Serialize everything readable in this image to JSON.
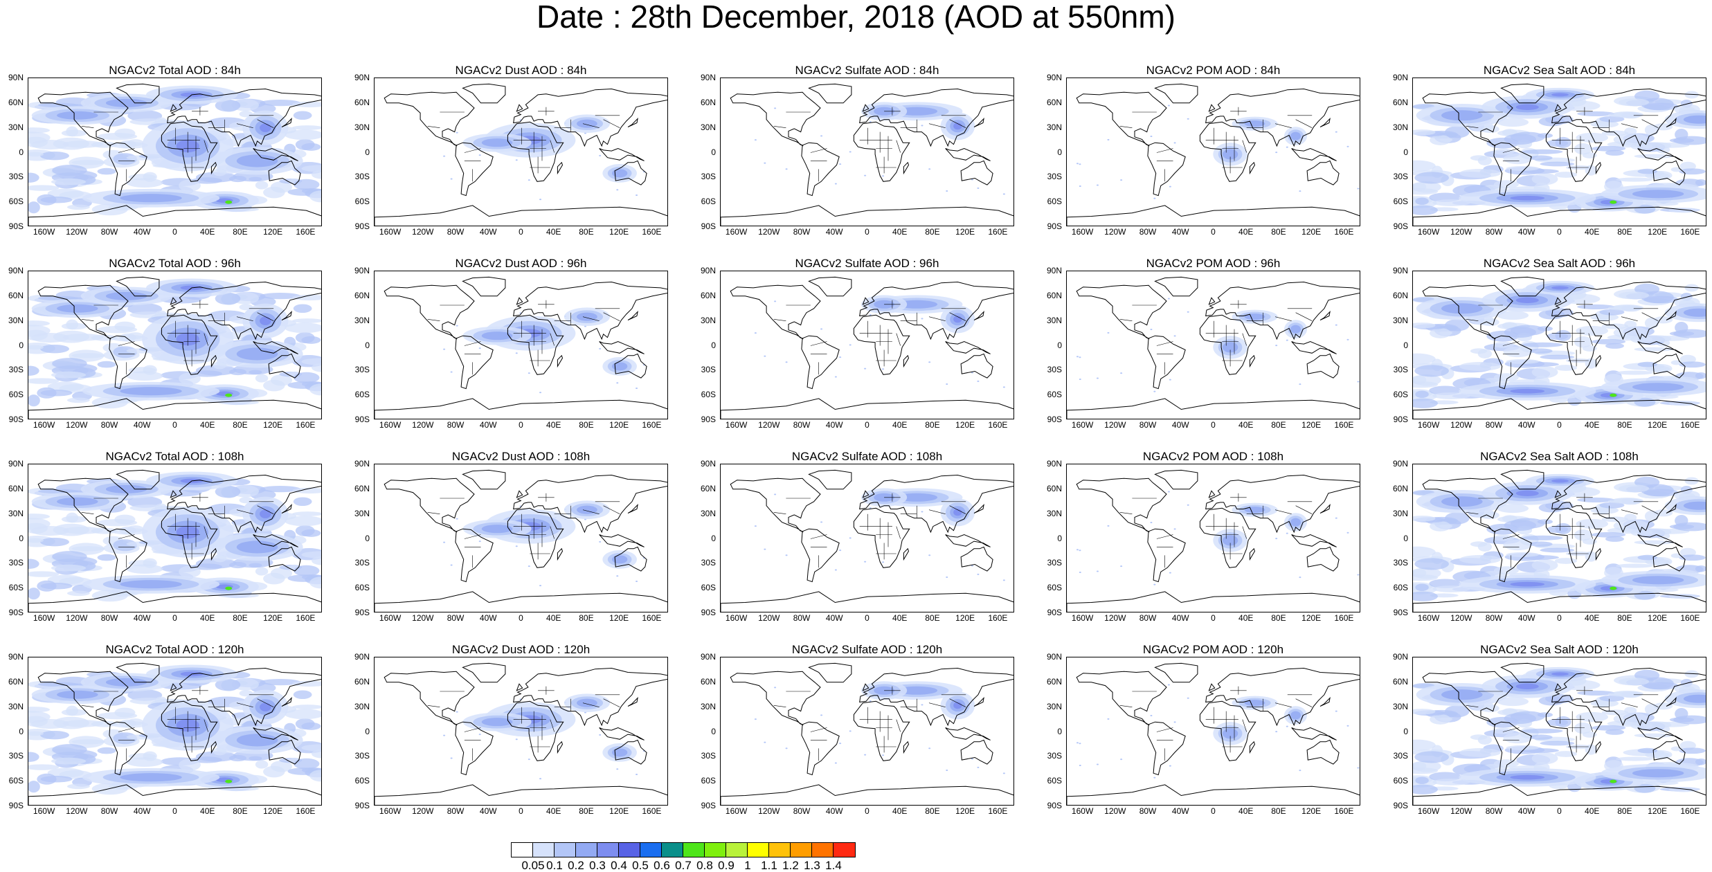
{
  "title": "Date : 28th December, 2018 (AOD at 550nm)",
  "lat_labels": [
    "90N",
    "60N",
    "30N",
    "0",
    "30S",
    "60S",
    "90S"
  ],
  "lon_labels": [
    "160W",
    "120W",
    "80W",
    "40W",
    "0",
    "40E",
    "80E",
    "120E",
    "160E"
  ],
  "species": [
    {
      "key": "total",
      "label": "Total AOD",
      "intensity": 0.9,
      "background": "ocean"
    },
    {
      "key": "dust",
      "label": "Dust AOD",
      "intensity": 0.7,
      "background": "none"
    },
    {
      "key": "sulfate",
      "label": "Sulfate AOD",
      "intensity": 0.5,
      "background": "none"
    },
    {
      "key": "pom",
      "label": "POM AOD",
      "intensity": 0.45,
      "background": "none"
    },
    {
      "key": "seasalt",
      "label": "Sea Salt AOD",
      "intensity": 0.8,
      "background": "ocean"
    }
  ],
  "panels": [
    {
      "row": "84h",
      "titles": [
        "NGACv2 Total AOD : 84h",
        "NGACv2 Dust AOD : 84h",
        "NGACv2 Sulfate AOD : 84h",
        "NGACv2 POM AOD : 84h",
        "NGACv2 Sea Salt AOD : 84h"
      ]
    },
    {
      "row": "96h",
      "titles": [
        "NGACv2 Total AOD : 96h",
        "NGACv2 Dust AOD : 96h",
        "NGACv2 Sulfate AOD : 96h",
        "NGACv2 POM AOD : 96h",
        "NGACv2 Sea Salt AOD : 96h"
      ]
    },
    {
      "row": "108h",
      "titles": [
        "NGACv2 Total AOD : 108h",
        "NGACv2 Dust AOD : 108h",
        "NGACv2 Sulfate AOD : 108h",
        "NGACv2 POM AOD : 108h",
        "NGACv2 Sea Salt AOD : 108h"
      ]
    },
    {
      "row": "120h",
      "titles": [
        "NGACv2 Total AOD : 120h",
        "NGACv2 Dust AOD : 120h",
        "NGACv2 Sulfate AOD : 120h",
        "NGACv2 POM AOD : 120h",
        "NGACv2 Sea Salt  AOD : 120h"
      ]
    }
  ],
  "colorbar": {
    "labels": [
      "0.05",
      "0.1",
      "0.2",
      "0.3",
      "0.4",
      "0.5",
      "0.6",
      "0.7",
      "0.8",
      "0.9",
      "1",
      "1.1",
      "1.2",
      "1.3",
      "1.4"
    ],
    "colors": [
      "#ffffff",
      "#d6e2fb",
      "#b3c6f7",
      "#93aaf3",
      "#7d8df0",
      "#5863e6",
      "#1a6ef0",
      "#0a8f8a",
      "#4ee51a",
      "#7fef0e",
      "#b9f23a",
      "#ffff00",
      "#ffc20a",
      "#ff9d00",
      "#ff7300",
      "#ff2a12"
    ]
  }
}
